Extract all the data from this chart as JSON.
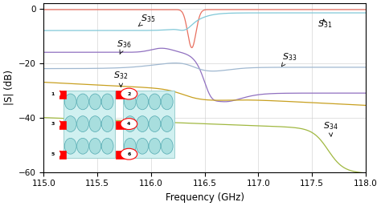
{
  "freq_start": 115,
  "freq_end": 118,
  "ylim": [
    -60,
    2
  ],
  "yticks": [
    0,
    -20,
    -40,
    -60
  ],
  "xticks": [
    115,
    115.5,
    116,
    116.5,
    117,
    117.5,
    118
  ],
  "xlabel": "Frequency (GHz)",
  "ylabel": "|S| (dB)",
  "grid_color": "#cccccc",
  "background_color": "#ffffff",
  "colors": {
    "S35": "#e87060",
    "S31": "#80c8d8",
    "S36": "#9070c0",
    "S33": "#a0b8d0",
    "S32": "#c8a020",
    "S34": "#a0b840"
  },
  "annotation_fontsize": 8
}
